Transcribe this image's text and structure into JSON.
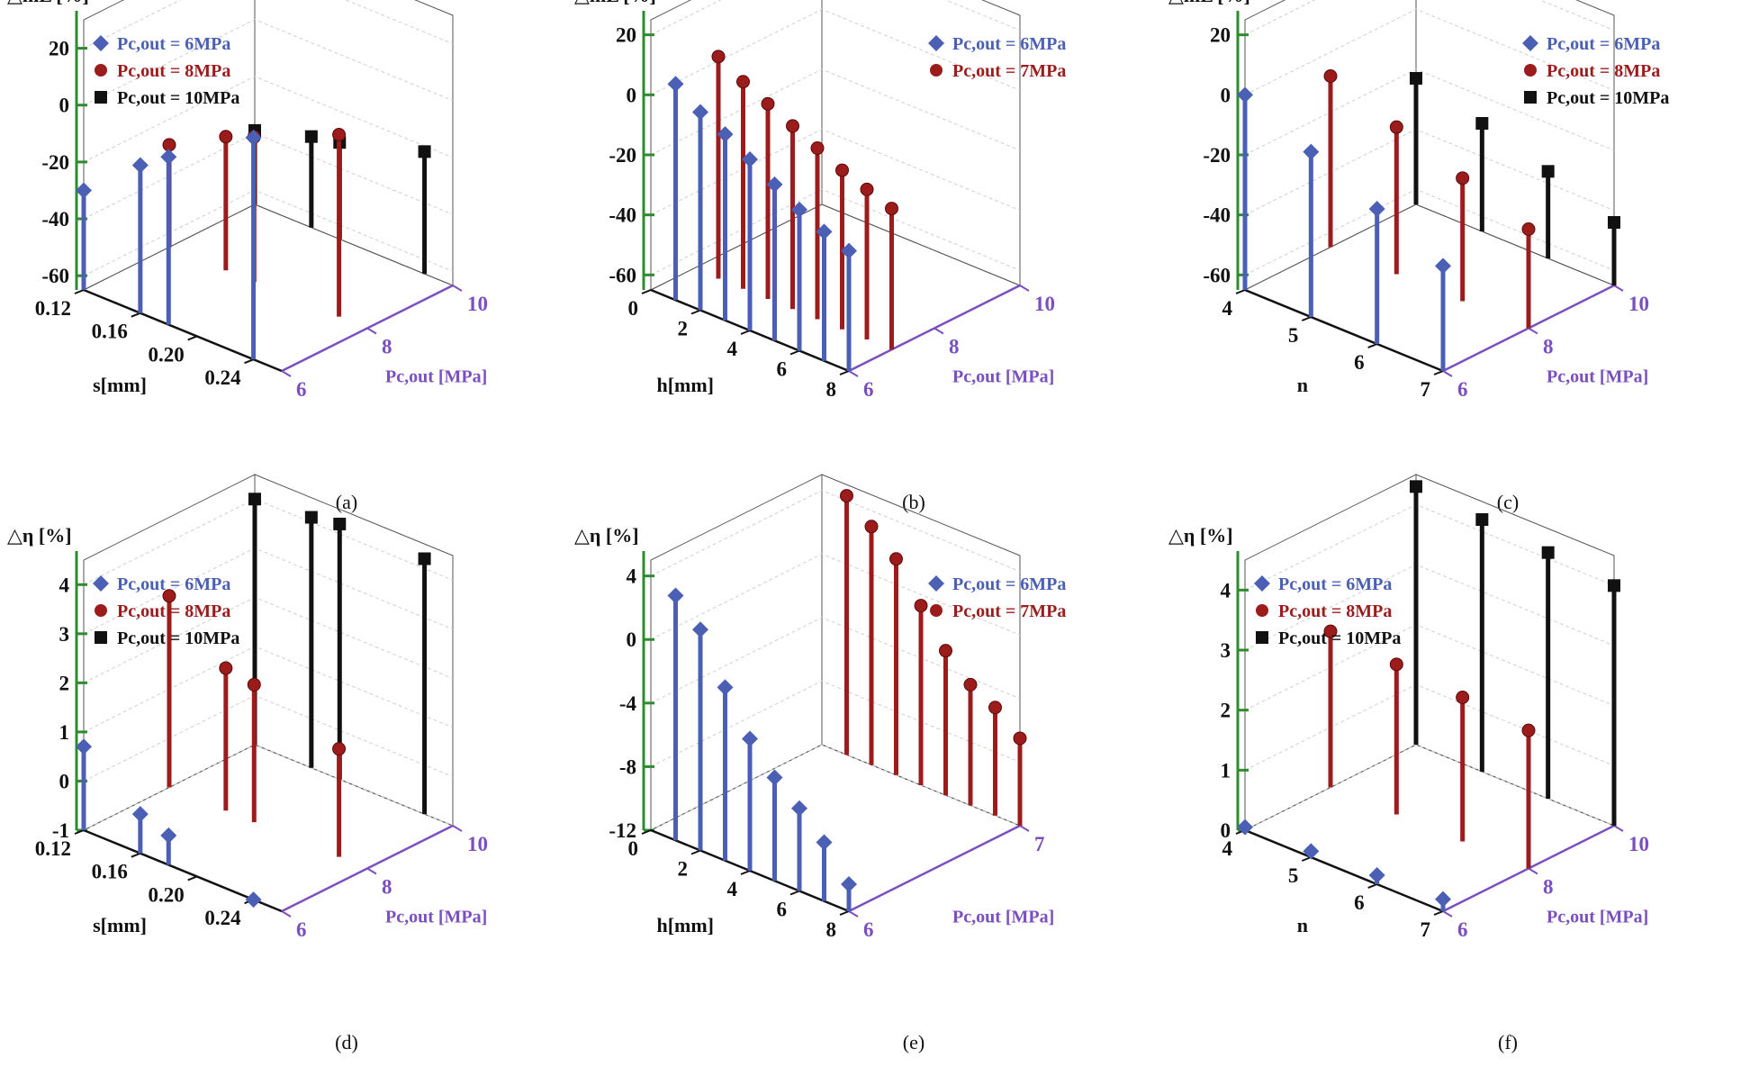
{
  "figure": {
    "colors": {
      "blue": "#4b5fb5",
      "red": "#9c1c1c",
      "black": "#111111",
      "zaxis": "#2e8b2e",
      "yaxis": "#7a4fbf",
      "grid": "#cfcfcf",
      "box": "#555555"
    }
  },
  "chart_data": [
    {
      "caption": "(a)",
      "type": "3d-stem",
      "zlabel": "△mL [%]",
      "xlabel": "s[mm]",
      "ylabel": "Pc,out [MPa]",
      "z_ticks": [
        "20",
        "0",
        "-20",
        "-40",
        "-60"
      ],
      "zlim": [
        -65,
        30
      ],
      "x_ticks": [
        "0.12",
        "0.16",
        "0.20",
        "0.24"
      ],
      "xlim": [
        0.12,
        0.26
      ],
      "y_ticks": [
        "6",
        "8",
        "10"
      ],
      "ylim": [
        6,
        10
      ],
      "legend_placement": "top-left",
      "series": [
        {
          "name": "Pc,out = 6MPa",
          "color": "blue",
          "marker": "diamond",
          "y": 6,
          "x": [
            0.12,
            0.16,
            0.18,
            0.24
          ],
          "z": [
            -30,
            -13,
            -6,
            13
          ]
        },
        {
          "name": "Pc,out = 8MPa",
          "color": "red",
          "marker": "sphere",
          "y": 8,
          "x": [
            0.12,
            0.16,
            0.18,
            0.24
          ],
          "z": [
            -29,
            -18,
            -14,
            -1
          ]
        },
        {
          "name": "Pc,out = 10MPa",
          "color": "black",
          "marker": "square",
          "y": 10,
          "x": [
            0.12,
            0.16,
            0.18,
            0.24
          ],
          "z": [
            -39,
            -33,
            -31,
            -22
          ]
        }
      ]
    },
    {
      "caption": "(b)",
      "type": "3d-stem",
      "zlabel": "△mL [%]",
      "xlabel": "h[mm]",
      "ylabel": "Pc,out [MPa]",
      "z_ticks": [
        "20",
        "0",
        "-20",
        "-40",
        "-60"
      ],
      "zlim": [
        -65,
        25
      ],
      "x_ticks": [
        "0",
        "2",
        "4",
        "6",
        "8"
      ],
      "xlim": [
        0,
        8
      ],
      "y_ticks": [
        "6",
        "8",
        "10"
      ],
      "ylim": [
        6,
        10
      ],
      "legend_placement": "top-right",
      "series": [
        {
          "name": "Pc,out = 6MPa",
          "color": "blue",
          "marker": "diamond",
          "y": 6,
          "x": [
            1,
            2,
            3,
            4,
            5,
            6,
            7,
            8
          ],
          "z": [
            7,
            1,
            -3,
            -8,
            -13,
            -18,
            -22,
            -25
          ]
        },
        {
          "name": "Pc,out = 7MPa",
          "color": "red",
          "marker": "sphere",
          "y": 7,
          "x": [
            1,
            2,
            3,
            4,
            5,
            6,
            7,
            8
          ],
          "z": [
            9,
            4,
            0,
            -4,
            -8,
            -12,
            -15,
            -18
          ]
        }
      ]
    },
    {
      "caption": "(c)",
      "type": "3d-stem",
      "zlabel": "△mL [%]",
      "xlabel": "n",
      "ylabel": "Pc,out [MPa]",
      "z_ticks": [
        "20",
        "0",
        "-20",
        "-40",
        "-60"
      ],
      "zlim": [
        -65,
        25
      ],
      "x_ticks": [
        "4",
        "5",
        "6",
        "7"
      ],
      "xlim": [
        4,
        7
      ],
      "y_ticks": [
        "6",
        "8",
        "10"
      ],
      "ylim": [
        6,
        10
      ],
      "legend_placement": "top-right",
      "series": [
        {
          "name": "Pc,out = 6MPa",
          "color": "blue",
          "marker": "diamond",
          "y": 6,
          "x": [
            4,
            5,
            6,
            7
          ],
          "z": [
            0,
            -10,
            -20,
            -30
          ]
        },
        {
          "name": "Pc,out = 8MPa",
          "color": "red",
          "marker": "sphere",
          "y": 8,
          "x": [
            4,
            5,
            6,
            7
          ],
          "z": [
            -8,
            -16,
            -24,
            -32
          ]
        },
        {
          "name": "Pc,out = 10MPa",
          "color": "black",
          "marker": "square",
          "y": 10,
          "x": [
            4,
            5,
            6,
            7
          ],
          "z": [
            -23,
            -29,
            -36,
            -44
          ]
        }
      ]
    },
    {
      "caption": "(d)",
      "type": "3d-stem",
      "zlabel": "△η [%]",
      "xlabel": "s[mm]",
      "ylabel": "Pc,out [MPa]",
      "z_ticks": [
        "4",
        "3",
        "2",
        "1",
        "0",
        "-1"
      ],
      "zlim": [
        -1,
        4.5
      ],
      "x_ticks": [
        "0.12",
        "0.16",
        "0.20",
        "0.24"
      ],
      "xlim": [
        0.12,
        0.26
      ],
      "y_ticks": [
        "6",
        "8",
        "10"
      ],
      "ylim": [
        6,
        10
      ],
      "legend_placement": "top-left",
      "series": [
        {
          "name": "Pc,out = 6MPa",
          "color": "blue",
          "marker": "diamond",
          "y": 6,
          "x": [
            0.12,
            0.16,
            0.18,
            0.24
          ],
          "z": [
            0.7,
            -0.2,
            -0.4,
            -1
          ]
        },
        {
          "name": "Pc,out = 8MPa",
          "color": "red",
          "marker": "sphere",
          "y": 8,
          "x": [
            0.12,
            0.16,
            0.18,
            0.24
          ],
          "z": [
            2.9,
            1.9,
            1.8,
            1.2
          ]
        },
        {
          "name": "Pc,out = 10MPa",
          "color": "black",
          "marker": "square",
          "y": 10,
          "x": [
            0.12,
            0.16,
            0.18,
            0.24
          ],
          "z": [
            4.0,
            4.1,
            4.2,
            4.2
          ]
        }
      ]
    },
    {
      "caption": "(e)",
      "type": "3d-stem",
      "zlabel": "△η [%]",
      "xlabel": "h[mm]",
      "ylabel": "Pc,out [MPa]",
      "z_ticks": [
        "4",
        "0",
        "-4",
        "-8",
        "-12"
      ],
      "zlim": [
        -12,
        5
      ],
      "x_ticks": [
        "0",
        "2",
        "4",
        "6",
        "8"
      ],
      "xlim": [
        0,
        8
      ],
      "y_ticks": [
        "6",
        "7"
      ],
      "ylim": [
        6,
        7
      ],
      "legend_placement": "top-right",
      "series": [
        {
          "name": "Pc,out = 6MPa",
          "color": "blue",
          "marker": "diamond",
          "y": 6,
          "x": [
            1,
            2,
            3,
            4,
            5,
            6,
            7,
            8
          ],
          "z": [
            3.4,
            1.9,
            -1.1,
            -3.7,
            -5.5,
            -6.8,
            -8.3,
            -10.3
          ]
        },
        {
          "name": "Pc,out = 7MPa",
          "color": "red",
          "marker": "sphere",
          "y": 7,
          "x": [
            1,
            2,
            3,
            4,
            5,
            6,
            7,
            8
          ],
          "z": [
            4.3,
            3.0,
            1.6,
            -0.7,
            -2.9,
            -4.4,
            -5.2,
            -6.5
          ]
        }
      ]
    },
    {
      "caption": "(f)",
      "type": "3d-stem",
      "zlabel": "△η [%]",
      "xlabel": "n",
      "ylabel": "Pc,out [MPa]",
      "z_ticks": [
        "4",
        "3",
        "2",
        "1",
        "0"
      ],
      "zlim": [
        0,
        4.5
      ],
      "x_ticks": [
        "4",
        "5",
        "6",
        "7"
      ],
      "xlim": [
        4,
        7
      ],
      "y_ticks": [
        "6",
        "8",
        "10"
      ],
      "ylim": [
        6,
        10
      ],
      "legend_placement": "top-left",
      "series": [
        {
          "name": "Pc,out = 6MPa",
          "color": "blue",
          "marker": "diamond",
          "y": 6,
          "x": [
            4,
            5,
            6,
            7
          ],
          "z": [
            0.05,
            0.1,
            0.15,
            0.2
          ]
        },
        {
          "name": "Pc,out = 8MPa",
          "color": "red",
          "marker": "sphere",
          "y": 8,
          "x": [
            4,
            5,
            6,
            7
          ],
          "z": [
            2.6,
            2.5,
            2.4,
            2.3
          ]
        },
        {
          "name": "Pc,out = 10MPa",
          "color": "black",
          "marker": "square",
          "y": 10,
          "x": [
            4,
            5,
            6,
            7
          ],
          "z": [
            4.3,
            4.2,
            4.1,
            4.0
          ]
        }
      ]
    }
  ]
}
